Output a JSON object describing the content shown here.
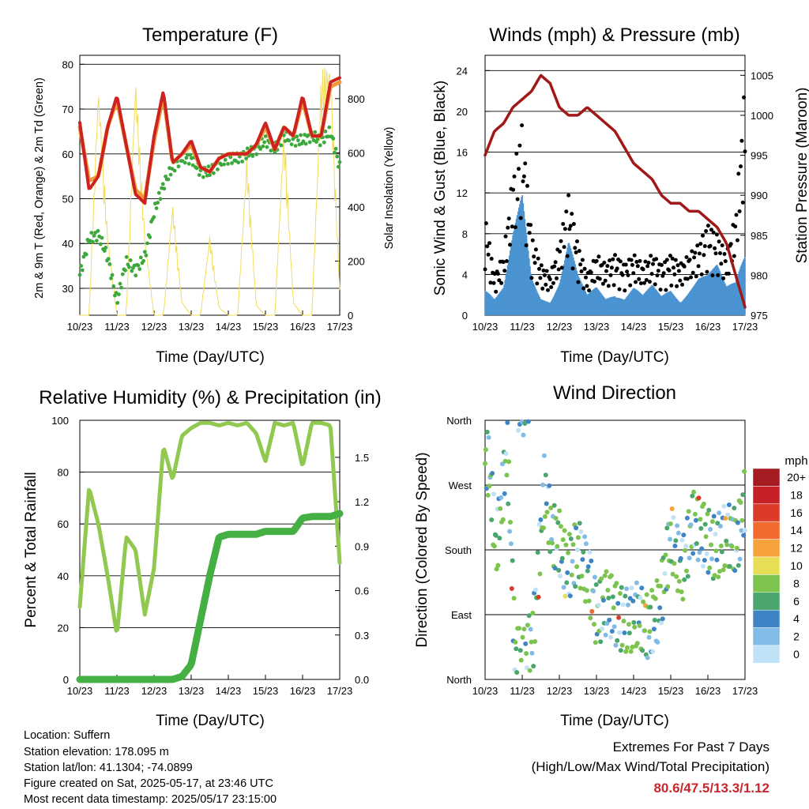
{
  "colors": {
    "temp_red": "#cc2222",
    "temp_orange": "#f09a3a",
    "dew_green": "#3aa83a",
    "solar_yellow": "#f2dc5a",
    "wind_blue": "#4b93d1",
    "gust_black": "#000000",
    "pressure_maroon": "#a01818",
    "rh_green": "#90c850",
    "rain_green": "#44b044",
    "extremes_red": "#c8262b"
  },
  "x_ticks": [
    "10/23",
    "11/23",
    "12/23",
    "13/23",
    "14/23",
    "15/23",
    "16/23",
    "17/23"
  ],
  "xlabel": "Time (Day/UTC)",
  "chart_data": [
    {
      "id": "temperature",
      "type": "line",
      "title": "Temperature (F)",
      "xlabel": "Time (Day/UTC)",
      "ylabel": "2m & 9m T (Red, Orange) & 2m Td (Green)",
      "y2label": "Solar Insolation (Yellow)",
      "ylim": [
        24,
        82
      ],
      "y2lim": [
        0,
        960
      ],
      "yticks": [
        "30",
        "40",
        "50",
        "60",
        "70",
        "80"
      ],
      "y2ticks": [
        "0",
        "200",
        "400",
        "600",
        "800"
      ],
      "x": [
        10,
        10.25,
        10.5,
        10.75,
        11,
        11.25,
        11.5,
        11.75,
        12,
        12.25,
        12.5,
        12.75,
        13,
        13.25,
        13.5,
        13.75,
        14,
        14.25,
        14.5,
        14.75,
        15,
        15.25,
        15.5,
        15.75,
        16,
        16.25,
        16.5,
        16.75,
        17
      ],
      "series": [
        {
          "name": "2m T",
          "color": "#cc2222",
          "values": [
            67,
            52,
            55,
            66,
            73,
            62,
            51,
            49,
            64,
            74,
            58,
            60,
            63,
            57,
            56,
            59,
            60,
            60,
            60,
            62,
            67,
            61,
            66,
            64,
            73,
            64,
            64,
            76,
            77
          ]
        },
        {
          "name": "9m T",
          "color": "#f09a3a",
          "values": [
            66,
            54,
            55,
            66,
            72,
            62,
            52,
            50,
            63,
            73,
            58,
            60,
            62,
            57,
            56,
            59,
            60,
            60,
            60,
            62,
            66,
            61,
            66,
            64,
            72,
            64,
            64,
            75,
            76
          ]
        },
        {
          "name": "2m Td",
          "color": "#3aa83a",
          "values": [
            33,
            41,
            42,
            37,
            27,
            36,
            34,
            37,
            47,
            53,
            57,
            59,
            59,
            56,
            56,
            58,
            59,
            59,
            60,
            61,
            63,
            61,
            64,
            63,
            63,
            64,
            63,
            65,
            57
          ]
        },
        {
          "name": "Solar",
          "color": "#f2dc5a",
          "axis": "y2",
          "values": [
            0,
            0,
            880,
            300,
            0,
            0,
            900,
            300,
            0,
            0,
            420,
            50,
            0,
            0,
            300,
            30,
            0,
            0,
            600,
            40,
            0,
            0,
            720,
            50,
            0,
            0,
            900,
            950,
            100
          ]
        }
      ]
    },
    {
      "id": "winds",
      "type": "scatter",
      "title": "Winds (mph) & Pressure (mb)",
      "xlabel": "Time (Day/UTC)",
      "ylabel": "Sonic Wind & Gust (Blue, Black)",
      "y2label": "Station Pressure (Maroon)",
      "ylim": [
        0,
        25.5
      ],
      "y2lim": [
        975,
        1007.5
      ],
      "yticks": [
        "0",
        "4",
        "8",
        "12",
        "16",
        "20",
        "24"
      ],
      "y2ticks": [
        "975",
        "980",
        "985",
        "990",
        "995",
        "1000",
        "1005"
      ],
      "x": [
        10,
        10.25,
        10.5,
        10.75,
        11,
        11.25,
        11.5,
        11.75,
        12,
        12.25,
        12.5,
        12.75,
        13,
        13.25,
        13.5,
        13.75,
        14,
        14.25,
        14.5,
        14.75,
        15,
        15.25,
        15.5,
        15.75,
        16,
        16.25,
        16.5,
        16.75,
        17
      ],
      "series": [
        {
          "name": "Sonic Wind",
          "color": "#4b93d1",
          "values": [
            4,
            2,
            3,
            8,
            12,
            4,
            2,
            2,
            4,
            8,
            4,
            2,
            3,
            2,
            3,
            2,
            3,
            2,
            3,
            2,
            3,
            2,
            3,
            4,
            4,
            5,
            3,
            4,
            9
          ]
        },
        {
          "name": "Gust",
          "color": "#000000",
          "values": [
            10,
            4,
            6,
            14,
            19,
            8,
            5,
            4,
            7,
            12,
            7,
            4,
            6,
            5,
            6,
            5,
            6,
            5,
            6,
            5,
            6,
            5,
            6,
            7,
            9,
            8,
            6,
            10,
            23
          ]
        },
        {
          "name": "Station Pressure",
          "color": "#a01818",
          "axis": "y2",
          "values": [
            995,
            998,
            999,
            1001,
            1002,
            1003,
            1005,
            1004,
            1001,
            1000,
            1000,
            1001,
            1000,
            999,
            998,
            996,
            994,
            993,
            992,
            990,
            989,
            989,
            988,
            988,
            987,
            986,
            984,
            980,
            976
          ]
        }
      ]
    },
    {
      "id": "humidity",
      "type": "line",
      "title": "Relative Humidity (%) & Precipitation (in)",
      "xlabel": "Time (Day/UTC)",
      "ylabel": "Percent & Total Rainfall",
      "ylim": [
        0,
        100
      ],
      "y2lim": [
        0,
        1.75
      ],
      "yticks": [
        "0",
        "20",
        "40",
        "60",
        "80",
        "100"
      ],
      "y2ticks": [
        "0.0",
        "0.3",
        "0.6",
        "0.9",
        "1.2",
        "1.5"
      ],
      "x": [
        10,
        10.25,
        10.5,
        10.75,
        11,
        11.25,
        11.5,
        11.75,
        12,
        12.25,
        12.5,
        12.75,
        13,
        13.25,
        13.5,
        13.75,
        14,
        14.25,
        14.5,
        14.75,
        15,
        15.25,
        15.5,
        15.75,
        16,
        16.25,
        16.5,
        16.75,
        17
      ],
      "series": [
        {
          "name": "Relative Humidity",
          "color": "#90c850",
          "values": [
            28,
            74,
            60,
            40,
            17,
            55,
            50,
            25,
            43,
            90,
            77,
            94,
            97,
            99,
            99,
            98,
            99,
            98,
            99,
            95,
            84,
            99,
            98,
            99,
            82,
            99,
            99,
            98,
            45
          ]
        },
        {
          "name": "Total Rainfall",
          "color": "#44b044",
          "axis": "y2",
          "values": [
            0,
            0,
            0,
            0,
            0,
            0,
            0,
            0,
            0,
            0,
            0,
            0.02,
            0.1,
            0.4,
            0.7,
            0.96,
            0.98,
            0.98,
            0.98,
            0.98,
            1.0,
            1.0,
            1.0,
            1.0,
            1.09,
            1.1,
            1.1,
            1.1,
            1.12
          ]
        }
      ]
    },
    {
      "id": "direction",
      "type": "scatter",
      "title": "Wind Direction",
      "xlabel": "Time (Day/UTC)",
      "ylabel": "Direction (Colored By Speed)",
      "yticks": [
        "North",
        "East",
        "South",
        "West",
        "North"
      ],
      "ylim": [
        0,
        360
      ],
      "legend": {
        "title": "mph",
        "labels": [
          "20+",
          "18",
          "16",
          "14",
          "12",
          "10",
          "8",
          "6",
          "4",
          "2",
          "0"
        ],
        "colors": [
          "#a51d22",
          "#c62127",
          "#dd3b2a",
          "#f26a2e",
          "#f7a33c",
          "#e6df55",
          "#7cc44e",
          "#4aa66d",
          "#3f85c5",
          "#82bce6",
          "#c0e2f7"
        ]
      },
      "x": [
        10.1,
        10.3,
        10.6,
        10.8,
        11.0,
        11.3,
        11.6,
        11.8,
        12.0,
        12.2,
        12.5,
        12.8,
        13.0,
        13.3,
        13.6,
        13.9,
        14.1,
        14.4,
        14.7,
        15.0,
        15.3,
        15.6,
        15.9,
        16.2,
        16.5,
        16.8,
        17.0
      ],
      "series": [
        {
          "name": "Direction",
          "values": [
            300,
            180,
            320,
            40,
            20,
            60,
            270,
            200,
            190,
            150,
            180,
            140,
            90,
            110,
            85,
            80,
            90,
            70,
            100,
            200,
            150,
            220,
            200,
            180,
            200,
            190,
            250
          ]
        }
      ]
    }
  ],
  "info": {
    "location": "Location: Suffern",
    "elevation": "Station elevation: 178.095 m",
    "latlon": "Station lat/lon: 41.1304; -74.0899",
    "created": "Figure created on Sat, 2025-05-17, at 23:46 UTC",
    "latest": "Most recent data timestamp: 2025/05/17 23:15:00"
  },
  "extremes": {
    "title": "Extremes For Past 7 Days",
    "subtitle": "(High/Low/Max Wind/Total Precipitation)",
    "values": "80.6/47.5/13.3/1.12"
  }
}
